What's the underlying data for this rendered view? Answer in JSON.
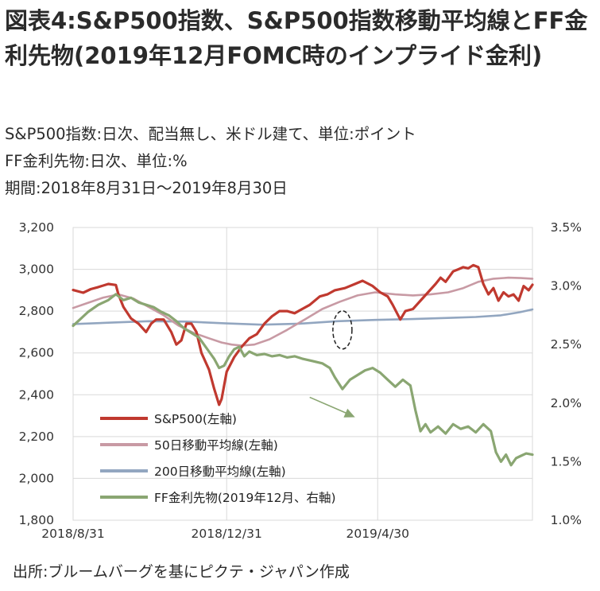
{
  "title": "図表4:S&P500指数、S&P500指数移動平均線とFF金利先物(2019年12月FOMC時のインプライド金利)",
  "subtitles": [
    "S&P500指数:日次、配当無し、米ドル建て、単位:ポイント",
    "FF金利先物:日次、単位:%",
    "期間:2018年8月31日〜2019年8月30日"
  ],
  "source": "出所:ブルームバーグを基にピクテ・ジャパン作成",
  "colors": {
    "sp500": "#c0392f",
    "ma50": "#c89aa4",
    "ma200": "#92a6c0",
    "ff": "#8aa672",
    "gridline": "#d9d9d9",
    "arrow": "#8aa672",
    "ellipse": "#222222"
  },
  "chart_data": {
    "type": "line",
    "x_ticks": [
      "2018/8/31",
      "2018/12/31",
      "2019/4/30"
    ],
    "x_range": [
      0,
      365
    ],
    "x_tick_days": [
      0,
      122,
      242
    ],
    "y_left": {
      "ticks": [
        "3,200",
        "3,000",
        "2,800",
        "2,600",
        "2,400",
        "2,200",
        "2,000",
        "1,800"
      ],
      "range": [
        1800,
        3200
      ]
    },
    "y_right": {
      "ticks": [
        "3.5%",
        "3.0%",
        "2.5%",
        "2.0%",
        "1.5%",
        "1.0%"
      ],
      "range": [
        1.0,
        3.5
      ]
    },
    "series": [
      {
        "key": "sp500",
        "name": "S&P500(左軸)",
        "axis": "left",
        "points": [
          [
            0,
            2901
          ],
          [
            8,
            2888
          ],
          [
            14,
            2905
          ],
          [
            20,
            2915
          ],
          [
            28,
            2930
          ],
          [
            34,
            2925
          ],
          [
            36,
            2880
          ],
          [
            40,
            2820
          ],
          [
            46,
            2765
          ],
          [
            52,
            2740
          ],
          [
            58,
            2700
          ],
          [
            62,
            2740
          ],
          [
            66,
            2760
          ],
          [
            72,
            2760
          ],
          [
            78,
            2700
          ],
          [
            82,
            2640
          ],
          [
            86,
            2660
          ],
          [
            90,
            2740
          ],
          [
            94,
            2740
          ],
          [
            98,
            2700
          ],
          [
            102,
            2600
          ],
          [
            108,
            2520
          ],
          [
            112,
            2430
          ],
          [
            116,
            2352
          ],
          [
            118,
            2380
          ],
          [
            122,
            2510
          ],
          [
            128,
            2580
          ],
          [
            134,
            2630
          ],
          [
            140,
            2670
          ],
          [
            146,
            2690
          ],
          [
            152,
            2740
          ],
          [
            158,
            2775
          ],
          [
            164,
            2800
          ],
          [
            170,
            2800
          ],
          [
            176,
            2790
          ],
          [
            182,
            2810
          ],
          [
            188,
            2830
          ],
          [
            196,
            2870
          ],
          [
            202,
            2880
          ],
          [
            208,
            2900
          ],
          [
            216,
            2910
          ],
          [
            224,
            2930
          ],
          [
            230,
            2945
          ],
          [
            238,
            2920
          ],
          [
            244,
            2890
          ],
          [
            250,
            2870
          ],
          [
            254,
            2830
          ],
          [
            260,
            2760
          ],
          [
            264,
            2800
          ],
          [
            270,
            2810
          ],
          [
            276,
            2850
          ],
          [
            282,
            2890
          ],
          [
            288,
            2930
          ],
          [
            292,
            2960
          ],
          [
            296,
            2940
          ],
          [
            302,
            2990
          ],
          [
            306,
            3000
          ],
          [
            310,
            3010
          ],
          [
            314,
            3005
          ],
          [
            318,
            3020
          ],
          [
            322,
            3010
          ],
          [
            326,
            2930
          ],
          [
            330,
            2880
          ],
          [
            334,
            2910
          ],
          [
            338,
            2850
          ],
          [
            342,
            2890
          ],
          [
            346,
            2870
          ],
          [
            350,
            2880
          ],
          [
            354,
            2850
          ],
          [
            358,
            2920
          ],
          [
            362,
            2900
          ],
          [
            365,
            2926
          ]
        ]
      },
      {
        "key": "ma50",
        "name": "50日移動平均線(左軸)",
        "axis": "left",
        "points": [
          [
            0,
            2815
          ],
          [
            12,
            2840
          ],
          [
            24,
            2865
          ],
          [
            36,
            2880
          ],
          [
            48,
            2860
          ],
          [
            60,
            2820
          ],
          [
            72,
            2780
          ],
          [
            84,
            2730
          ],
          [
            96,
            2695
          ],
          [
            108,
            2670
          ],
          [
            118,
            2650
          ],
          [
            126,
            2640
          ],
          [
            134,
            2635
          ],
          [
            144,
            2640
          ],
          [
            156,
            2665
          ],
          [
            170,
            2710
          ],
          [
            184,
            2760
          ],
          [
            198,
            2810
          ],
          [
            212,
            2845
          ],
          [
            226,
            2875
          ],
          [
            240,
            2890
          ],
          [
            256,
            2880
          ],
          [
            270,
            2875
          ],
          [
            284,
            2880
          ],
          [
            298,
            2890
          ],
          [
            310,
            2910
          ],
          [
            322,
            2940
          ],
          [
            334,
            2955
          ],
          [
            346,
            2960
          ],
          [
            356,
            2958
          ],
          [
            365,
            2955
          ]
        ]
      },
      {
        "key": "ma200",
        "name": "200日移動平均線(左軸)",
        "axis": "left",
        "points": [
          [
            0,
            2738
          ],
          [
            30,
            2745
          ],
          [
            60,
            2752
          ],
          [
            90,
            2750
          ],
          [
            120,
            2742
          ],
          [
            150,
            2735
          ],
          [
            180,
            2740
          ],
          [
            210,
            2752
          ],
          [
            240,
            2758
          ],
          [
            270,
            2762
          ],
          [
            300,
            2768
          ],
          [
            320,
            2772
          ],
          [
            340,
            2780
          ],
          [
            355,
            2795
          ],
          [
            365,
            2808
          ]
        ]
      },
      {
        "key": "ff",
        "name": "FF金利先物(2019年12月、右軸)",
        "axis": "right",
        "points": [
          [
            0,
            2.66
          ],
          [
            6,
            2.72
          ],
          [
            12,
            2.78
          ],
          [
            20,
            2.84
          ],
          [
            28,
            2.88
          ],
          [
            34,
            2.93
          ],
          [
            40,
            2.88
          ],
          [
            46,
            2.9
          ],
          [
            52,
            2.86
          ],
          [
            58,
            2.84
          ],
          [
            64,
            2.82
          ],
          [
            70,
            2.78
          ],
          [
            76,
            2.75
          ],
          [
            82,
            2.7
          ],
          [
            88,
            2.64
          ],
          [
            94,
            2.6
          ],
          [
            100,
            2.56
          ],
          [
            104,
            2.5
          ],
          [
            108,
            2.44
          ],
          [
            112,
            2.38
          ],
          [
            116,
            2.3
          ],
          [
            120,
            2.32
          ],
          [
            124,
            2.4
          ],
          [
            128,
            2.46
          ],
          [
            132,
            2.48
          ],
          [
            136,
            2.4
          ],
          [
            140,
            2.44
          ],
          [
            146,
            2.41
          ],
          [
            152,
            2.42
          ],
          [
            158,
            2.4
          ],
          [
            164,
            2.41
          ],
          [
            170,
            2.39
          ],
          [
            176,
            2.4
          ],
          [
            182,
            2.38
          ],
          [
            190,
            2.36
          ],
          [
            198,
            2.34
          ],
          [
            204,
            2.3
          ],
          [
            208,
            2.22
          ],
          [
            214,
            2.12
          ],
          [
            220,
            2.2
          ],
          [
            226,
            2.24
          ],
          [
            232,
            2.28
          ],
          [
            238,
            2.3
          ],
          [
            244,
            2.26
          ],
          [
            250,
            2.2
          ],
          [
            256,
            2.14
          ],
          [
            262,
            2.2
          ],
          [
            268,
            2.15
          ],
          [
            272,
            1.94
          ],
          [
            276,
            1.76
          ],
          [
            280,
            1.82
          ],
          [
            284,
            1.75
          ],
          [
            290,
            1.8
          ],
          [
            296,
            1.74
          ],
          [
            302,
            1.82
          ],
          [
            308,
            1.78
          ],
          [
            314,
            1.8
          ],
          [
            320,
            1.75
          ],
          [
            326,
            1.82
          ],
          [
            332,
            1.76
          ],
          [
            336,
            1.58
          ],
          [
            340,
            1.5
          ],
          [
            344,
            1.56
          ],
          [
            348,
            1.47
          ],
          [
            352,
            1.53
          ],
          [
            356,
            1.55
          ],
          [
            360,
            1.57
          ],
          [
            365,
            1.56
          ]
        ]
      }
    ],
    "annotations": [
      "dashed-ellipse",
      "arrow"
    ]
  }
}
